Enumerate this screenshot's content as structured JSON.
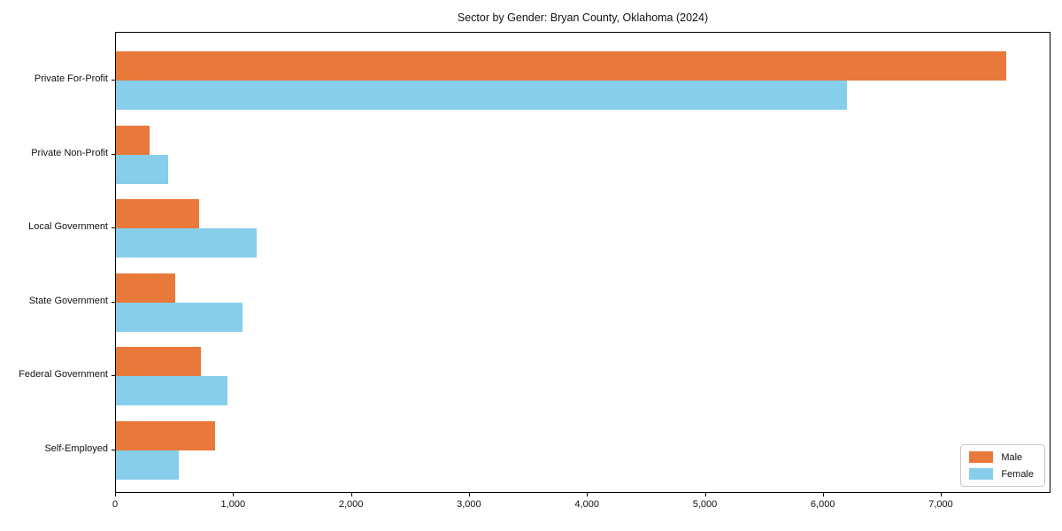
{
  "chart_data": {
    "type": "bar",
    "orientation": "horizontal",
    "title": "Sector by Gender: Bryan County, Oklahoma (2024)",
    "categories": [
      "Private For-Profit",
      "Private Non-Profit",
      "Local Government",
      "State Government",
      "Federal Government",
      "Self-Employed"
    ],
    "series": [
      {
        "name": "Male",
        "color": "#e8793a",
        "values": [
          7550,
          285,
          705,
          500,
          720,
          840
        ]
      },
      {
        "name": "Female",
        "color": "#87ceeb",
        "values": [
          6200,
          445,
          1190,
          1070,
          945,
          530
        ]
      }
    ],
    "xlabel": "",
    "ylabel": "",
    "xlim": [
      0,
      7930
    ],
    "xticks": [
      0,
      1000,
      2000,
      3000,
      4000,
      5000,
      6000,
      7000
    ],
    "xtick_labels": [
      "0",
      "1,000",
      "2,000",
      "3,000",
      "4,000",
      "5,000",
      "6,000",
      "7,000"
    ],
    "legend_position": "lower right",
    "grid": false,
    "plot_border_color": "#000000",
    "background_color": "#ffffff"
  }
}
